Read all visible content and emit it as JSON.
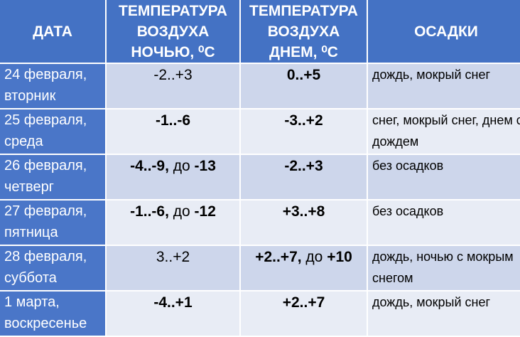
{
  "table": {
    "header": [
      [
        "ДАТА"
      ],
      [
        "ТЕМПЕРАТУРА",
        "ВОЗДУХА",
        "НОЧЬЮ, ⁰С"
      ],
      [
        "ТЕМПЕРАТУРА",
        "ВОЗДУХА",
        "ДНЕМ, ⁰С"
      ],
      [
        "ОСАДКИ"
      ]
    ],
    "rows": [
      {
        "date": [
          "24 февраля,",
          "вторник"
        ],
        "night": [
          {
            "text": "-2..+3",
            "bold": false
          }
        ],
        "day": [
          {
            "text": "0..+5",
            "bold": true
          }
        ],
        "precip": "дождь, мокрый снег"
      },
      {
        "date": [
          "25 февраля,",
          "среда"
        ],
        "night": [
          {
            "text": "-1..-6",
            "bold": true
          }
        ],
        "day": [
          {
            "text": "-3..+2",
            "bold": true
          }
        ],
        "precip": "снег, мокрый снег, днем с дождем"
      },
      {
        "date": [
          "26 февраля,",
          "четверг"
        ],
        "night": [
          {
            "text": "-4..-9,",
            "bold": true
          },
          {
            "text": " до ",
            "bold": false
          },
          {
            "text": "-13",
            "bold": true
          }
        ],
        "day": [
          {
            "text": "-2..+3",
            "bold": true
          }
        ],
        "precip": "без осадков"
      },
      {
        "date": [
          "27 февраля,",
          "пятница"
        ],
        "night": [
          {
            "text": "-1..-6,",
            "bold": true
          },
          {
            "text": " до ",
            "bold": false
          },
          {
            "text": "-12",
            "bold": true
          }
        ],
        "day": [
          {
            "text": "+3..+8",
            "bold": true
          }
        ],
        "precip": "без осадков"
      },
      {
        "date": [
          "28 февраля,",
          "суббота"
        ],
        "night": [
          {
            "text": "3..+2",
            "bold": false
          }
        ],
        "day": [
          {
            "text": "+2..+7,",
            "bold": true
          },
          {
            "text": " до ",
            "bold": false
          },
          {
            "text": "+10",
            "bold": true
          }
        ],
        "precip": "дождь, ночью с мокрым снегом"
      },
      {
        "date": [
          "1 марта,",
          "воскресенье"
        ],
        "night": [
          {
            "text": "-4..+1",
            "bold": true
          }
        ],
        "day": [
          {
            "text": "+2..+7",
            "bold": true
          }
        ],
        "precip": "дождь, мокрый снег"
      }
    ]
  }
}
